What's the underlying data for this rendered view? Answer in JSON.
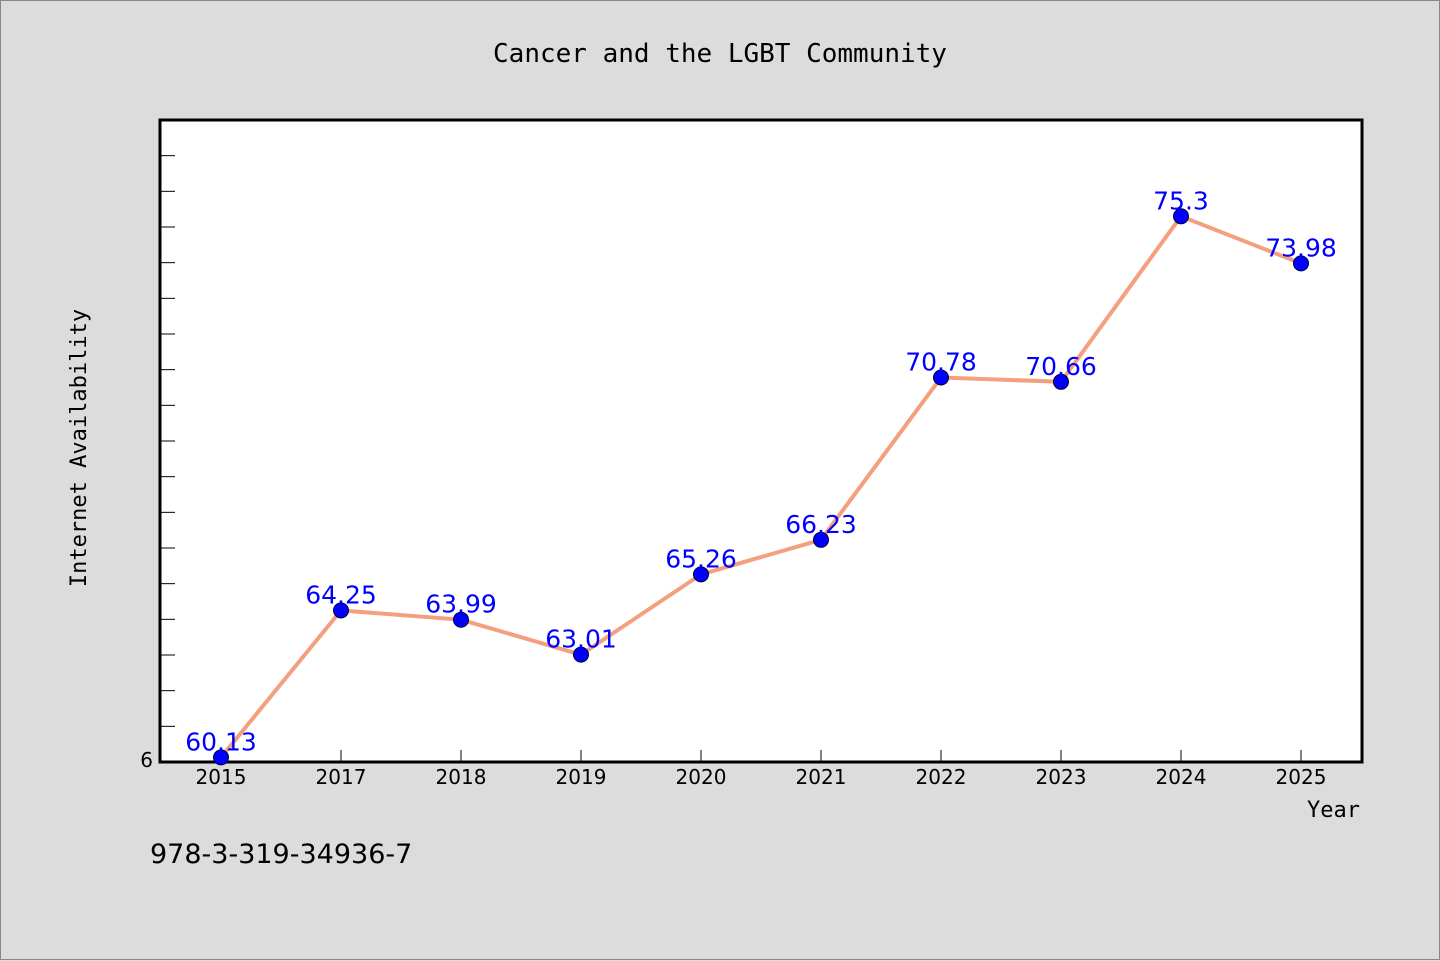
{
  "chart_data": {
    "type": "line",
    "title": "Cancer and the LGBT Community",
    "xlabel": "Year",
    "ylabel": "Internet Availability",
    "categories": [
      "2015",
      "2017",
      "2018",
      "2019",
      "2020",
      "2021",
      "2022",
      "2023",
      "2024",
      "2025"
    ],
    "series": [
      {
        "values": [
          60.13,
          64.25,
          63.99,
          63.01,
          65.26,
          66.23,
          70.78,
          70.66,
          75.3,
          73.98
        ],
        "labels": [
          "60.13",
          "64.25",
          "63.99",
          "63.01",
          "65.26",
          "66.23",
          "70.78",
          "70.66",
          "75.3",
          "73.98"
        ],
        "line_color": "#f4a07e",
        "marker_color": "#0000ff"
      }
    ],
    "ylim": [
      60.0,
      78.0
    ],
    "y_tick_label": "6",
    "grid": false,
    "legend": "none"
  },
  "footer": {
    "isbn": "978-3-319-34936-7"
  },
  "colors": {
    "background": "#dcdcdc",
    "plot_background": "#ffffff",
    "label_color": "#0000ff"
  }
}
